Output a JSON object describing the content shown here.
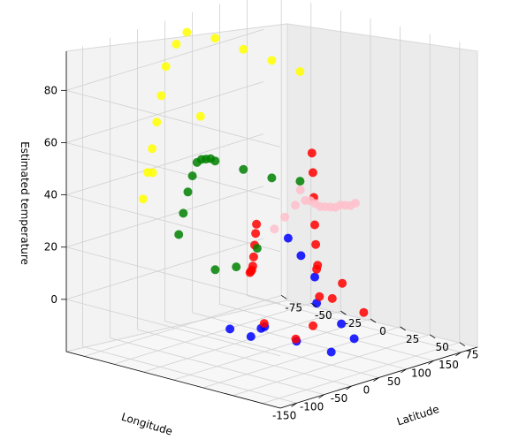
{
  "chart_data": {
    "type": "scatter",
    "projection": "3d",
    "title": "",
    "xlabel": "Longitude",
    "ylabel": "Latitude",
    "zlabel": "Estimated temperature",
    "xlim": [
      -180,
      180
    ],
    "ylim": [
      -90,
      90
    ],
    "zlim": [
      -20,
      95
    ],
    "x_ticks": [
      -150,
      -100,
      -50,
      0,
      50,
      100,
      150
    ],
    "y_ticks": [
      75,
      50,
      25,
      0,
      -25,
      -50,
      -75
    ],
    "z_ticks": [
      0,
      20,
      40,
      60,
      80
    ],
    "grid": true,
    "series": [
      {
        "color": "#0000ff",
        "values": [
          [
            -150,
            60,
            5
          ],
          [
            -100,
            40,
            0
          ],
          [
            -60,
            10,
            -10
          ],
          [
            -20,
            30,
            -12
          ],
          [
            0,
            50,
            -15
          ],
          [
            20,
            60,
            -10
          ],
          [
            60,
            10,
            -5
          ],
          [
            100,
            -10,
            0
          ],
          [
            140,
            -40,
            2
          ],
          [
            160,
            -60,
            5
          ],
          [
            -120,
            20,
            -2
          ],
          [
            40,
            40,
            -8
          ]
        ]
      },
      {
        "color": "#ff0000",
        "values": [
          [
            -180,
            70,
            48
          ],
          [
            -160,
            60,
            42
          ],
          [
            -140,
            50,
            35
          ],
          [
            -120,
            40,
            28
          ],
          [
            -100,
            30,
            22
          ],
          [
            -80,
            20,
            18
          ],
          [
            -60,
            10,
            15
          ],
          [
            -40,
            0,
            12
          ],
          [
            -20,
            60,
            8
          ],
          [
            0,
            40,
            5
          ],
          [
            20,
            50,
            10
          ],
          [
            40,
            20,
            12
          ],
          [
            60,
            10,
            8
          ],
          [
            80,
            0,
            15
          ],
          [
            100,
            -10,
            20
          ],
          [
            120,
            -20,
            28
          ],
          [
            140,
            -30,
            35
          ],
          [
            160,
            -40,
            40
          ],
          [
            -130,
            80,
            2
          ],
          [
            -90,
            35,
            0
          ],
          [
            10,
            30,
            -8
          ],
          [
            70,
            45,
            -5
          ]
        ]
      },
      {
        "color": "#008000",
        "values": [
          [
            -170,
            0,
            35
          ],
          [
            -140,
            -10,
            40
          ],
          [
            -110,
            -20,
            45
          ],
          [
            -80,
            -30,
            48
          ],
          [
            -50,
            -40,
            50
          ],
          [
            -20,
            -50,
            48
          ],
          [
            10,
            -60,
            45
          ],
          [
            40,
            -70,
            42
          ],
          [
            70,
            -80,
            38
          ],
          [
            100,
            -70,
            34
          ],
          [
            130,
            -60,
            30
          ],
          [
            160,
            -50,
            28
          ],
          [
            -60,
            -20,
            12
          ],
          [
            0,
            -30,
            8
          ],
          [
            60,
            -40,
            10
          ]
        ]
      },
      {
        "color": "#ffff00",
        "values": [
          [
            -170,
            -30,
            45
          ],
          [
            -140,
            -40,
            52
          ],
          [
            -110,
            -50,
            58
          ],
          [
            -80,
            -60,
            65
          ],
          [
            -50,
            -70,
            72
          ],
          [
            -20,
            -80,
            80
          ],
          [
            10,
            -85,
            86
          ],
          [
            40,
            -90,
            88
          ],
          [
            70,
            -80,
            85
          ],
          [
            100,
            -70,
            80
          ],
          [
            130,
            -60,
            75
          ],
          [
            160,
            -50,
            70
          ],
          [
            -120,
            -45,
            50
          ],
          [
            0,
            -60,
            62
          ]
        ]
      },
      {
        "color": "#ffc0cb",
        "values": [
          [
            -180,
            85,
            48
          ],
          [
            -150,
            80,
            50
          ],
          [
            -120,
            75,
            52
          ],
          [
            -100,
            70,
            56
          ],
          [
            -80,
            65,
            50
          ],
          [
            -60,
            60,
            48
          ],
          [
            -40,
            55,
            45
          ],
          [
            -20,
            50,
            42
          ],
          [
            0,
            45,
            40
          ],
          [
            20,
            40,
            38
          ],
          [
            40,
            35,
            36
          ],
          [
            60,
            30,
            35
          ],
          [
            80,
            25,
            33
          ],
          [
            100,
            20,
            31
          ],
          [
            120,
            15,
            30
          ]
        ]
      }
    ]
  }
}
